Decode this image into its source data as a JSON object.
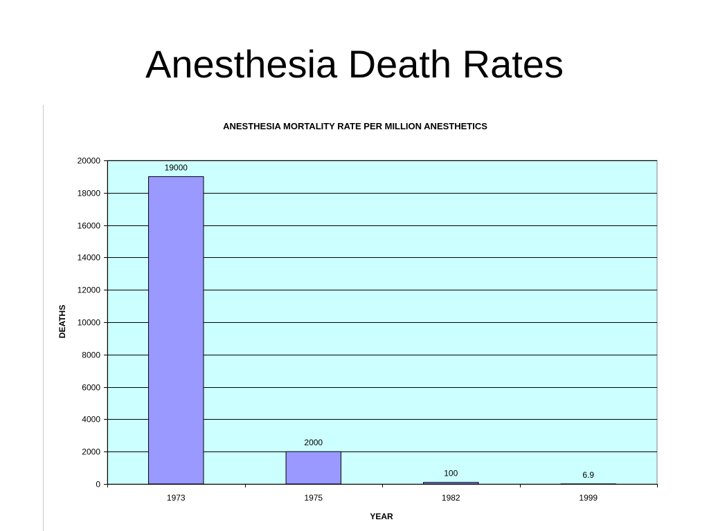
{
  "slide": {
    "title": "Anesthesia Death Rates"
  },
  "colors": {
    "plot_background": "#ccffff",
    "bar_fill": "#9999ff",
    "bar_stroke": "#000000",
    "gridline": "#000000"
  },
  "chart_data": {
    "type": "bar",
    "title": "ANESTHESIA MORTALITY RATE PER MILLION ANESTHETICS",
    "xlabel": "YEAR",
    "ylabel": "DEATHS",
    "categories": [
      "1973",
      "1975",
      "1982",
      "1999"
    ],
    "values": [
      19000,
      2000,
      100,
      6.9
    ],
    "data_labels": [
      "19000",
      "2000",
      "100",
      "6.9"
    ],
    "ylim": [
      0,
      20000
    ],
    "y_ticks": [
      0,
      2000,
      4000,
      6000,
      8000,
      10000,
      12000,
      14000,
      16000,
      18000,
      20000
    ],
    "grid": true,
    "legend": "none"
  }
}
